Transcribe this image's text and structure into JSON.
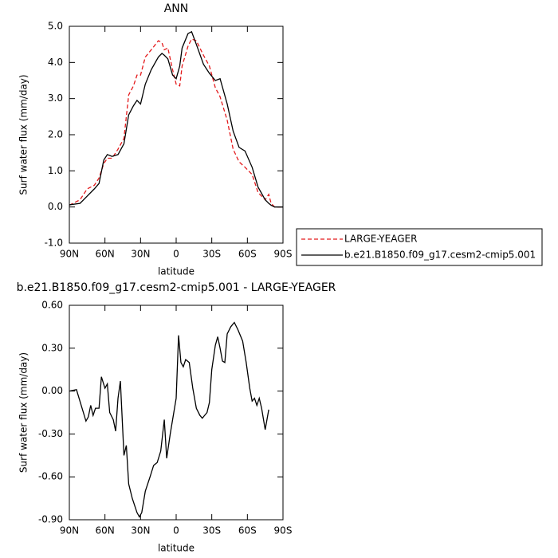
{
  "chart_data": [
    {
      "type": "line",
      "title": "ANN",
      "xlabel": "latitude",
      "ylabel": "Surf water flux (mm/day)",
      "x": [
        90,
        81,
        75,
        69,
        65,
        61,
        58,
        54,
        49,
        44,
        40,
        36,
        33,
        30,
        26,
        21,
        15,
        12,
        10,
        7,
        3,
        0,
        -3,
        -5,
        -10,
        -13,
        -17,
        -23,
        -28,
        -33,
        -37,
        -43,
        -48,
        -53,
        -58,
        -64,
        -69,
        -75,
        -78,
        -80,
        -83,
        -90
      ],
      "series": [
        {
          "name": "LARGE-YEAGER",
          "color": "#e41a1c",
          "style": "dashed",
          "values": [
            0.05,
            0.2,
            0.5,
            0.6,
            0.8,
            1.2,
            1.35,
            1.35,
            1.6,
            1.9,
            3.1,
            3.35,
            3.65,
            3.65,
            4.15,
            4.35,
            4.6,
            4.55,
            4.35,
            4.4,
            3.8,
            3.4,
            3.35,
            3.9,
            4.45,
            4.65,
            4.6,
            4.2,
            3.9,
            3.3,
            3.05,
            2.4,
            1.6,
            1.25,
            1.1,
            0.9,
            0.4,
            0.2,
            0.35,
            0.1,
            0,
            0
          ]
        },
        {
          "name": "b.e21.B1850.f09_g17.cesm2-cmip5.001",
          "color": "#000000",
          "style": "solid",
          "values": [
            0.06,
            0.1,
            0.3,
            0.5,
            0.65,
            1.3,
            1.45,
            1.4,
            1.45,
            1.75,
            2.55,
            2.8,
            2.95,
            2.85,
            3.4,
            3.8,
            4.15,
            4.25,
            4.2,
            4.1,
            3.65,
            3.55,
            3.9,
            4.4,
            4.8,
            4.85,
            4.5,
            3.95,
            3.7,
            3.5,
            3.55,
            2.85,
            2.1,
            1.65,
            1.55,
            1.1,
            0.55,
            0.2,
            0.1,
            0.05,
            0,
            0
          ]
        }
      ],
      "xlim": [
        90,
        -90
      ],
      "xticks": [
        {
          "value": 90,
          "label": "90N"
        },
        {
          "value": 60,
          "label": "60N"
        },
        {
          "value": 30,
          "label": "30N"
        },
        0,
        {
          "value": -30,
          "label": "30S"
        },
        {
          "value": -60,
          "label": "60S"
        },
        {
          "value": -90,
          "label": "90S"
        }
      ],
      "ylim": [
        -1,
        5
      ],
      "yticks": [
        {
          "value": -1,
          "label": "-1.0"
        },
        {
          "value": 0,
          "label": "0.0"
        },
        {
          "value": 1,
          "label": "1.0"
        },
        {
          "value": 2,
          "label": "2.0"
        },
        {
          "value": 3,
          "label": "3.0"
        },
        {
          "value": 4,
          "label": "4.0"
        },
        {
          "value": 5,
          "label": "5.0"
        }
      ],
      "legend": "right"
    },
    {
      "type": "line",
      "title": "b.e21.B1850.f09_g17.cesm2-cmip5.001 - LARGE-YEAGER",
      "xlabel": "latitude",
      "ylabel": "Surf water flux (mm/day)",
      "x": [
        90,
        84,
        80,
        76,
        74,
        72,
        70,
        68,
        65,
        63,
        60,
        58,
        56,
        53,
        51,
        49,
        47,
        44,
        42,
        40,
        37,
        33,
        31,
        29,
        26,
        22,
        19,
        16,
        13,
        10,
        8,
        5,
        3,
        0,
        -2,
        -4,
        -6,
        -8,
        -11,
        -14,
        -17,
        -20,
        -22,
        -26,
        -28,
        -30,
        -33,
        -35,
        -37,
        -39,
        -41,
        -43,
        -46,
        -49,
        -52,
        -56,
        -59,
        -62,
        -64,
        -66,
        -68,
        -70,
        -72,
        -75,
        -78
      ],
      "series": [
        {
          "color": "#000000",
          "style": "solid",
          "values": [
            0.0,
            0.01,
            -0.1,
            -0.21,
            -0.18,
            -0.1,
            -0.17,
            -0.12,
            -0.12,
            0.1,
            0.02,
            0.05,
            -0.15,
            -0.2,
            -0.28,
            -0.05,
            0.07,
            -0.45,
            -0.38,
            -0.65,
            -0.75,
            -0.85,
            -0.88,
            -0.85,
            -0.7,
            -0.6,
            -0.52,
            -0.5,
            -0.42,
            -0.2,
            -0.47,
            -0.3,
            -0.2,
            -0.05,
            0.39,
            0.2,
            0.17,
            0.22,
            0.2,
            0.02,
            -0.12,
            -0.17,
            -0.19,
            -0.15,
            -0.08,
            0.15,
            0.32,
            0.38,
            0.3,
            0.21,
            0.2,
            0.4,
            0.45,
            0.48,
            0.43,
            0.35,
            0.2,
            0.02,
            -0.07,
            -0.05,
            -0.1,
            -0.05,
            -0.12,
            -0.27,
            -0.13
          ]
        }
      ],
      "xlim": [
        90,
        -90
      ],
      "xticks": [
        {
          "value": 90,
          "label": "90N"
        },
        {
          "value": 60,
          "label": "60N"
        },
        {
          "value": 30,
          "label": "30N"
        },
        0,
        {
          "value": -30,
          "label": "30S"
        },
        {
          "value": -60,
          "label": "60S"
        },
        {
          "value": -90,
          "label": "90S"
        }
      ],
      "ylim": [
        -0.9,
        0.6
      ],
      "yticks": [
        {
          "value": -0.9,
          "label": "-0.90"
        },
        {
          "value": -0.6,
          "label": "-0.60"
        },
        {
          "value": -0.3,
          "label": "-0.30"
        },
        {
          "value": 0,
          "label": "0.00"
        },
        {
          "value": 0.3,
          "label": "0.30"
        },
        {
          "value": 0.6,
          "label": "0.60"
        }
      ]
    }
  ]
}
